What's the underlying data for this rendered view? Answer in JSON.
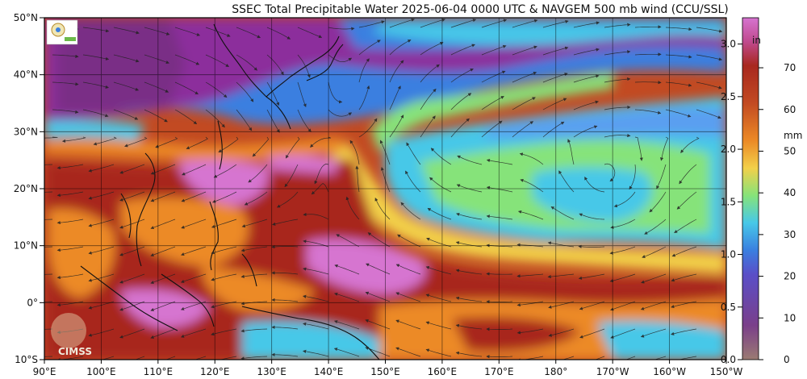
{
  "title": "SSEC Total Precipitable Water  2025-06-04 0000 UTC & NAVGEM 500 mb wind (CCU/SSL)",
  "map": {
    "lon_range": [
      90,
      210
    ],
    "lat_range": [
      -10,
      50
    ],
    "lat_labels": [
      "50°N",
      "40°N",
      "30°N",
      "20°N",
      "10°N",
      "0°",
      "10°S"
    ],
    "lat_values": [
      50,
      40,
      30,
      20,
      10,
      0,
      -10
    ],
    "lon_labels": [
      "90°E",
      "100°E",
      "110°E",
      "120°E",
      "130°E",
      "140°E",
      "150°E",
      "160°E",
      "170°E",
      "180°",
      "170°W",
      "160°W",
      "150°W"
    ],
    "lon_values": [
      90,
      100,
      110,
      120,
      130,
      140,
      150,
      160,
      170,
      180,
      190,
      200,
      210
    ],
    "logo_lower_left": "CIMSS"
  },
  "colorbar": {
    "inches_label": "in",
    "mm_label": "mm",
    "inch_ticks": [
      "3.0",
      "2.5",
      "2.0",
      "1.5",
      "1.0",
      "0.5",
      "0.0"
    ],
    "inch_values": [
      3.0,
      2.5,
      2.0,
      1.5,
      1.0,
      0.5,
      0.0
    ],
    "mm_ticks": [
      "70",
      "60",
      "50",
      "40",
      "30",
      "20",
      "10",
      "0"
    ],
    "mm_values": [
      70,
      60,
      50,
      40,
      30,
      20,
      10,
      0
    ],
    "colors": {
      "low": "#9b7b72",
      "purple": "#8c2f9c",
      "blue": "#3a7fe0",
      "cyan": "#47c8e8",
      "green": "#86e37a",
      "yellow": "#f2d04a",
      "orange": "#ec8a26",
      "red": "#a8281f",
      "pink": "#d674d0"
    }
  }
}
